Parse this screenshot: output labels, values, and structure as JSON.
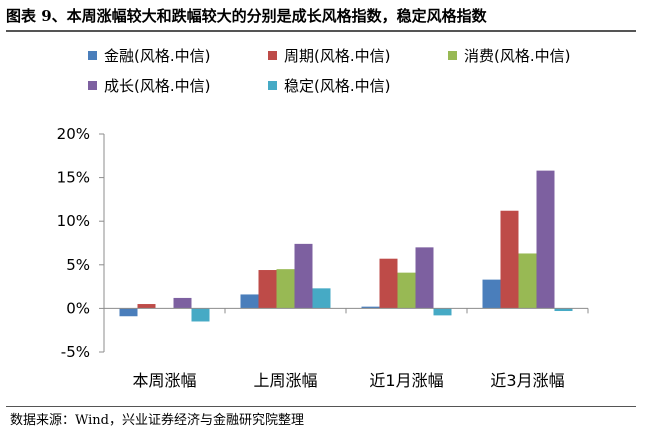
{
  "title": "图表 9、本周涨幅较大和跌幅较大的分别是成长风格指数，稳定风格指数",
  "source": "数据来源：Wind，兴业证券经济与金融研究院整理",
  "chart_data": {
    "type": "bar",
    "categories": [
      "本周涨幅",
      "上周涨幅",
      "近1月涨幅",
      "近3月涨幅"
    ],
    "series": [
      {
        "name": "金融(风格.中信)",
        "color": "#4a7ebb",
        "values": [
          -0.9,
          1.6,
          0.2,
          3.3
        ]
      },
      {
        "name": "周期(风格.中信)",
        "color": "#be4b48",
        "values": [
          0.5,
          4.4,
          5.7,
          11.2
        ]
      },
      {
        "name": "消费(风格.中信)",
        "color": "#98b954",
        "values": [
          0.0,
          4.5,
          4.1,
          6.3
        ]
      },
      {
        "name": "成长(风格.中信)",
        "color": "#7d60a0",
        "values": [
          1.2,
          7.4,
          7.0,
          15.8
        ]
      },
      {
        "name": "稳定(风格.中信)",
        "color": "#46aac5",
        "values": [
          -1.5,
          2.3,
          -0.8,
          -0.3
        ]
      }
    ],
    "yticks": [
      "20%",
      "15%",
      "10%",
      "5%",
      "0%",
      "-5%"
    ],
    "ylim": [
      -5,
      20
    ],
    "grid": false,
    "legend_position": "top"
  }
}
